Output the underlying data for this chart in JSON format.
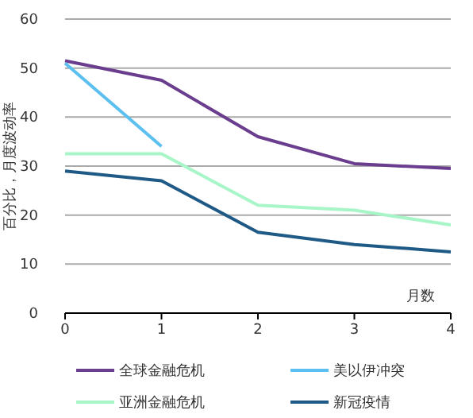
{
  "chart_data": {
    "type": "line",
    "xlabel": "月数",
    "ylabel": "百分比，月度波动率",
    "x": [
      0,
      1,
      2,
      3,
      4
    ],
    "xlim": [
      0,
      4
    ],
    "xticks": [
      0,
      1,
      2,
      3,
      4
    ],
    "ylim": [
      0,
      60
    ],
    "yticks": [
      0,
      10,
      20,
      30,
      40,
      50,
      60
    ],
    "grid": "y",
    "legend": "bottom",
    "series": [
      {
        "name": "全球金融危机",
        "color": "#6a3d8f",
        "values": [
          51.5,
          47.5,
          36,
          30.5,
          29.5
        ]
      },
      {
        "name": "美以伊冲突",
        "color": "#5bc0f0",
        "values": [
          51,
          34,
          null,
          null,
          null
        ]
      },
      {
        "name": "亚洲金融危机",
        "color": "#a8f5c8",
        "values": [
          32.5,
          32.5,
          22,
          21,
          18
        ]
      },
      {
        "name": "新冠疫情",
        "color": "#1f5a86",
        "values": [
          29,
          27,
          16.5,
          14,
          12.5
        ]
      }
    ]
  }
}
